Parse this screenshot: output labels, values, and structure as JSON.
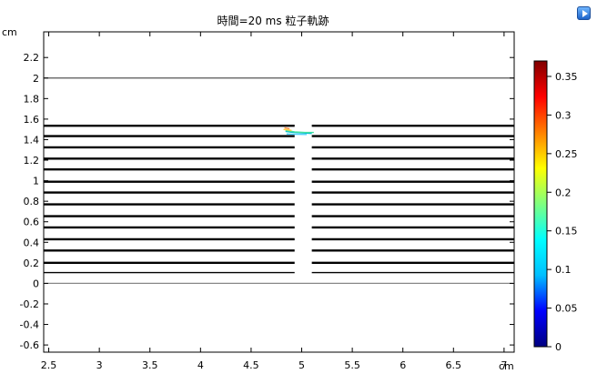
{
  "plot_title": "時間=20 ms  粒子軌跡",
  "icon": "comsol-play-icon",
  "chart_data": {
    "type": "line",
    "title": "時間=20 ms  粒子軌跡",
    "xlabel": "cm",
    "ylabel": "cm",
    "xlim": [
      2.45,
      7.1
    ],
    "ylim": [
      -0.67,
      2.45
    ],
    "x_ticks": [
      "2.5",
      "3",
      "3.5",
      "4",
      "4.5",
      "5",
      "5.5",
      "6",
      "6.5",
      "7"
    ],
    "x_tick_values": [
      2.5,
      3,
      3.5,
      4,
      4.5,
      5,
      5.5,
      6,
      6.5,
      7
    ],
    "y_ticks": [
      "-0.6",
      "-0.4",
      "-0.2",
      "0",
      "0.2",
      "0.4",
      "0.6",
      "0.8",
      "1",
      "1.2",
      "1.4",
      "1.6",
      "1.8",
      "2",
      "2.2"
    ],
    "y_tick_values": [
      -0.6,
      -0.4,
      -0.2,
      0,
      0.2,
      0.4,
      0.6,
      0.8,
      1,
      1.2,
      1.4,
      1.6,
      1.8,
      2,
      2.2
    ],
    "grid": false,
    "electrodes": [
      {
        "y": 0.105,
        "thin": true
      },
      {
        "y": 0.2
      },
      {
        "y": 0.32
      },
      {
        "y": 0.43
      },
      {
        "y": 0.545
      },
      {
        "y": 0.655
      },
      {
        "y": 0.77
      },
      {
        "y": 0.885
      },
      {
        "y": 0.99
      },
      {
        "y": 1.11
      },
      {
        "y": 1.215
      },
      {
        "y": 1.325
      },
      {
        "y": 1.435
      },
      {
        "y": 1.535
      }
    ],
    "electrode_gap": [
      4.93,
      5.1
    ],
    "reference_lines": [
      {
        "y": 0,
        "color": "#888888"
      },
      {
        "y": 2,
        "color": "#555555"
      }
    ],
    "series": [
      {
        "x": [
          4.84,
          4.92,
          5.02,
          5.1
        ],
        "y": [
          1.48,
          1.47,
          1.465,
          1.46
        ],
        "color": "#00bcd4"
      },
      {
        "x": [
          4.84,
          4.93,
          5.03,
          5.12
        ],
        "y": [
          1.49,
          1.475,
          1.47,
          1.47
        ],
        "color": "#40e0a0"
      },
      {
        "x": [
          4.82,
          4.9
        ],
        "y": [
          1.5,
          1.49
        ],
        "color": "#ffd23f"
      },
      {
        "x": [
          4.83,
          4.88
        ],
        "y": [
          1.515,
          1.505
        ],
        "color": "#ff8a3d"
      },
      {
        "x": [
          4.85,
          4.94,
          5.05
        ],
        "y": [
          1.455,
          1.452,
          1.45
        ],
        "color": "#4fd0ff"
      }
    ],
    "colorbar": {
      "min": 0,
      "max": 0.37,
      "ticks": [
        "0",
        "0.05",
        "0.1",
        "0.15",
        "0.2",
        "0.25",
        "0.3",
        "0.35"
      ],
      "tick_values": [
        0,
        0.05,
        0.1,
        0.15,
        0.2,
        0.25,
        0.3,
        0.35
      ],
      "colors": [
        "#000080",
        "#0000ff",
        "#00bfff",
        "#00ffff",
        "#7fff7f",
        "#ffff00",
        "#ff8000",
        "#ff0000",
        "#800000"
      ]
    }
  }
}
